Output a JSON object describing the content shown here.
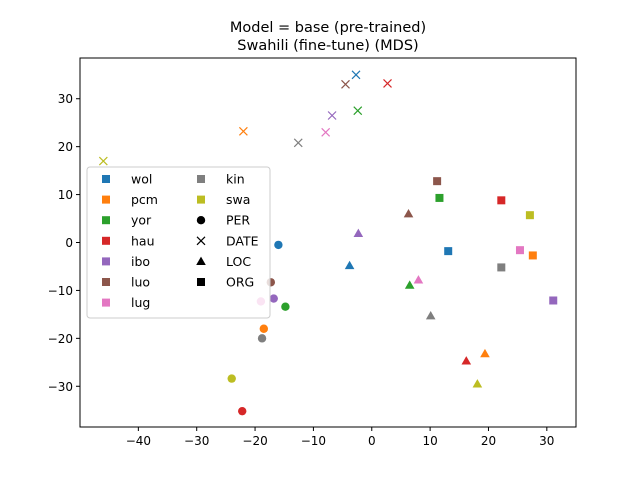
{
  "chart_data": {
    "type": "scatter",
    "title": "Model = base (pre-trained)",
    "subtitle": "Swahili (fine-tune) (MDS)",
    "xlabel": "",
    "ylabel": "",
    "xlim": [
      -50,
      35
    ],
    "ylim": [
      -38.5,
      38.5
    ],
    "xticks": [
      -40,
      -30,
      -20,
      -10,
      0,
      10,
      20,
      30
    ],
    "yticks": [
      -30,
      -20,
      -10,
      0,
      10,
      20,
      30
    ],
    "grid": false,
    "legend_position": "center-left",
    "languages": [
      {
        "name": "wol",
        "color": "#1f77b4"
      },
      {
        "name": "pcm",
        "color": "#ff7f0e"
      },
      {
        "name": "yor",
        "color": "#2ca02c"
      },
      {
        "name": "hau",
        "color": "#d62728"
      },
      {
        "name": "ibo",
        "color": "#9467bd"
      },
      {
        "name": "luo",
        "color": "#8c564b"
      },
      {
        "name": "lug",
        "color": "#e377c2"
      },
      {
        "name": "kin",
        "color": "#7f7f7f"
      },
      {
        "name": "swa",
        "color": "#bcbd22"
      }
    ],
    "entity_types": [
      {
        "name": "PER",
        "marker": "circle"
      },
      {
        "name": "DATE",
        "marker": "x"
      },
      {
        "name": "LOC",
        "marker": "triangle"
      },
      {
        "name": "ORG",
        "marker": "square"
      }
    ],
    "points": [
      {
        "lang": "wol",
        "type": "PER",
        "x": -16,
        "y": -0.5
      },
      {
        "lang": "pcm",
        "type": "PER",
        "x": -18.5,
        "y": -18
      },
      {
        "lang": "yor",
        "type": "PER",
        "x": -14.8,
        "y": -13.4
      },
      {
        "lang": "hau",
        "type": "PER",
        "x": -22.2,
        "y": -35.2
      },
      {
        "lang": "ibo",
        "type": "PER",
        "x": -16.8,
        "y": -11.7
      },
      {
        "lang": "luo",
        "type": "PER",
        "x": -17.3,
        "y": -8.3
      },
      {
        "lang": "lug",
        "type": "PER",
        "x": -19,
        "y": -12.3
      },
      {
        "lang": "kin",
        "type": "PER",
        "x": -18.8,
        "y": -20
      },
      {
        "lang": "swa",
        "type": "PER",
        "x": -24,
        "y": -28.4
      },
      {
        "lang": "wol",
        "type": "DATE",
        "x": -2.7,
        "y": 35
      },
      {
        "lang": "pcm",
        "type": "DATE",
        "x": -22,
        "y": 23.2
      },
      {
        "lang": "yor",
        "type": "DATE",
        "x": -2.4,
        "y": 27.5
      },
      {
        "lang": "hau",
        "type": "DATE",
        "x": 2.7,
        "y": 33.2
      },
      {
        "lang": "ibo",
        "type": "DATE",
        "x": -6.8,
        "y": 26.5
      },
      {
        "lang": "luo",
        "type": "DATE",
        "x": -4.5,
        "y": 33
      },
      {
        "lang": "lug",
        "type": "DATE",
        "x": -7.9,
        "y": 23
      },
      {
        "lang": "kin",
        "type": "DATE",
        "x": -12.6,
        "y": 20.8
      },
      {
        "lang": "swa",
        "type": "DATE",
        "x": -46,
        "y": 17
      },
      {
        "lang": "wol",
        "type": "LOC",
        "x": -3.8,
        "y": -4.8
      },
      {
        "lang": "pcm",
        "type": "LOC",
        "x": 19.4,
        "y": -23.2
      },
      {
        "lang": "yor",
        "type": "LOC",
        "x": 6.5,
        "y": -8.9
      },
      {
        "lang": "hau",
        "type": "LOC",
        "x": 16.2,
        "y": -24.7
      },
      {
        "lang": "ibo",
        "type": "LOC",
        "x": -2.3,
        "y": 1.9
      },
      {
        "lang": "luo",
        "type": "LOC",
        "x": 6.3,
        "y": 6
      },
      {
        "lang": "lug",
        "type": "LOC",
        "x": 8,
        "y": -7.8
      },
      {
        "lang": "kin",
        "type": "LOC",
        "x": 10.1,
        "y": -15.3
      },
      {
        "lang": "swa",
        "type": "LOC",
        "x": 18.1,
        "y": -29.5
      },
      {
        "lang": "wol",
        "type": "ORG",
        "x": 13.1,
        "y": -1.8
      },
      {
        "lang": "pcm",
        "type": "ORG",
        "x": 27.6,
        "y": -2.7
      },
      {
        "lang": "yor",
        "type": "ORG",
        "x": 11.6,
        "y": 9.3
      },
      {
        "lang": "hau",
        "type": "ORG",
        "x": 22.2,
        "y": 8.8
      },
      {
        "lang": "ibo",
        "type": "ORG",
        "x": 31.1,
        "y": -12.1
      },
      {
        "lang": "luo",
        "type": "ORG",
        "x": 11.2,
        "y": 12.8
      },
      {
        "lang": "lug",
        "type": "ORG",
        "x": 25.4,
        "y": -1.6
      },
      {
        "lang": "kin",
        "type": "ORG",
        "x": 22.2,
        "y": -5.2
      },
      {
        "lang": "swa",
        "type": "ORG",
        "x": 27.1,
        "y": 5.7
      }
    ]
  }
}
